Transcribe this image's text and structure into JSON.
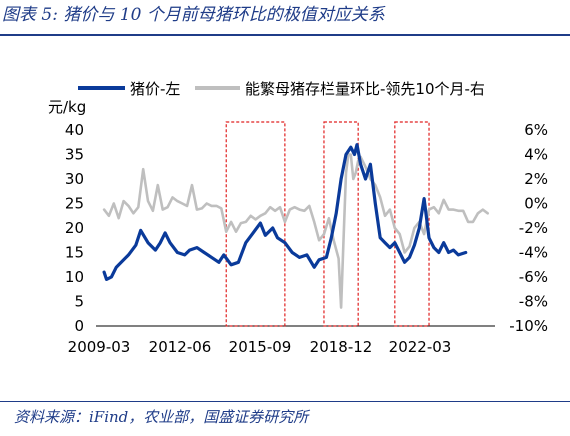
{
  "header": {
    "title": "图表 5:  猪价与 10 个月前母猪环比的极值对应关系"
  },
  "footer": {
    "source": "资料来源：iFind，农业部，国盛证券研究所"
  },
  "chart_data": {
    "type": "line",
    "ylabel_left": "元/kg",
    "legend_position": "top",
    "grid": false,
    "x_ticks": [
      "2009-03",
      "2012-06",
      "2015-09",
      "2018-12",
      "2022-03"
    ],
    "x_range": [
      2009.17,
      2025.5
    ],
    "y_left": {
      "range": [
        0,
        40
      ],
      "ticks": [
        "0",
        "5",
        "10",
        "15",
        "20",
        "25",
        "30",
        "35",
        "40"
      ]
    },
    "y_right": {
      "range": [
        -10,
        6
      ],
      "ticks": [
        "-10%",
        "-8%",
        "-6%",
        "-4%",
        "-2%",
        "0%",
        "2%",
        "4%",
        "6%"
      ]
    },
    "highlight_windows": [
      {
        "x0": 2014.5,
        "x1": 2016.9
      },
      {
        "x0": 2018.5,
        "x1": 2019.9
      },
      {
        "x0": 2021.4,
        "x1": 2022.8
      }
    ],
    "series": [
      {
        "name": "猪价-左",
        "axis": "left",
        "color": "#0a3a9a",
        "x": [
          2009.5,
          2009.6,
          2009.8,
          2010.0,
          2010.2,
          2010.5,
          2010.8,
          2011.0,
          2011.3,
          2011.6,
          2011.8,
          2012.0,
          2012.2,
          2012.5,
          2012.8,
          2013.0,
          2013.3,
          2013.6,
          2013.9,
          2014.2,
          2014.4,
          2014.7,
          2015.0,
          2015.3,
          2015.6,
          2015.9,
          2016.1,
          2016.4,
          2016.6,
          2016.9,
          2017.2,
          2017.5,
          2017.8,
          2018.1,
          2018.3,
          2018.6,
          2018.8,
          2019.0,
          2019.2,
          2019.4,
          2019.6,
          2019.75,
          2019.85,
          2020.0,
          2020.2,
          2020.4,
          2020.6,
          2020.8,
          2021.0,
          2021.2,
          2021.4,
          2021.6,
          2021.8,
          2022.0,
          2022.2,
          2022.4,
          2022.6,
          2022.8,
          2023.0,
          2023.2,
          2023.4,
          2023.6,
          2023.8,
          2024.0,
          2024.3
        ],
        "values": [
          11,
          9.5,
          10,
          12,
          13,
          14.5,
          16.5,
          19.5,
          17,
          15.5,
          17,
          19,
          17,
          15,
          14.5,
          15.5,
          16,
          15,
          14,
          13,
          14.5,
          12.5,
          13,
          17,
          19,
          21,
          18.5,
          20,
          18,
          17,
          15,
          14,
          14.5,
          12,
          13.5,
          14,
          18,
          23,
          30,
          35,
          36.5,
          35,
          37,
          33,
          30,
          33,
          25,
          18,
          17,
          16,
          17,
          15,
          13,
          14,
          16.5,
          20,
          26,
          18,
          16,
          15,
          17,
          15,
          15.5,
          14.5,
          15
        ]
      },
      {
        "name": "能繁母猪存栏量环比-领先10个月-右",
        "axis": "right",
        "color": "#bfbfbf",
        "x": [
          2009.5,
          2009.7,
          2009.9,
          2010.1,
          2010.3,
          2010.5,
          2010.7,
          2010.9,
          2011.1,
          2011.3,
          2011.5,
          2011.7,
          2011.9,
          2012.1,
          2012.3,
          2012.5,
          2012.7,
          2012.9,
          2013.1,
          2013.3,
          2013.5,
          2013.7,
          2013.9,
          2014.1,
          2014.3,
          2014.5,
          2014.7,
          2014.9,
          2015.1,
          2015.3,
          2015.5,
          2015.7,
          2015.9,
          2016.1,
          2016.3,
          2016.5,
          2016.7,
          2016.9,
          2017.1,
          2017.3,
          2017.5,
          2017.7,
          2017.9,
          2018.1,
          2018.3,
          2018.5,
          2018.7,
          2018.9,
          2019.1,
          2019.2,
          2019.3,
          2019.4,
          2019.5,
          2019.6,
          2019.7,
          2019.8,
          2019.9,
          2020.0,
          2020.2,
          2020.4,
          2020.6,
          2020.8,
          2021.0,
          2021.2,
          2021.4,
          2021.6,
          2021.8,
          2022.0,
          2022.2,
          2022.4,
          2022.6,
          2022.8,
          2023.0,
          2023.2,
          2023.4,
          2023.6,
          2023.8,
          2024.0,
          2024.2,
          2024.4,
          2024.6,
          2024.8,
          2025.0,
          2025.2
        ],
        "values": [
          -0.5,
          -1.0,
          0,
          -1.2,
          0.2,
          -0.2,
          -0.8,
          -0.3,
          2.8,
          0.2,
          -0.6,
          1.5,
          -0.5,
          -0.3,
          0.5,
          0.2,
          0,
          -0.2,
          1.5,
          -0.5,
          -0.4,
          0,
          -0.2,
          -0.2,
          -0.4,
          -2.3,
          -1.5,
          -2.3,
          -1.6,
          -1.5,
          -1.0,
          -1.3,
          -1.0,
          -0.8,
          -0.3,
          -0.6,
          -0.3,
          -1.5,
          -0.5,
          -0.3,
          -0.5,
          -0.6,
          -0.2,
          -1.5,
          -3.0,
          -2.5,
          -1.2,
          -3.0,
          -4.5,
          -8.5,
          -3.0,
          2.5,
          4.0,
          4.0,
          2.0,
          2.5,
          3.5,
          3.8,
          3.0,
          2.0,
          1.5,
          0.5,
          -1.0,
          -0.5,
          -2.0,
          -2.5,
          -4.0,
          -3.5,
          -2.0,
          -1.5,
          -2.5,
          -0.5,
          -0.3,
          -0.8,
          0.3,
          -0.5,
          -0.5,
          -0.6,
          -0.6,
          -1.5,
          -1.5,
          -0.8,
          -0.5,
          -0.8
        ]
      }
    ]
  }
}
